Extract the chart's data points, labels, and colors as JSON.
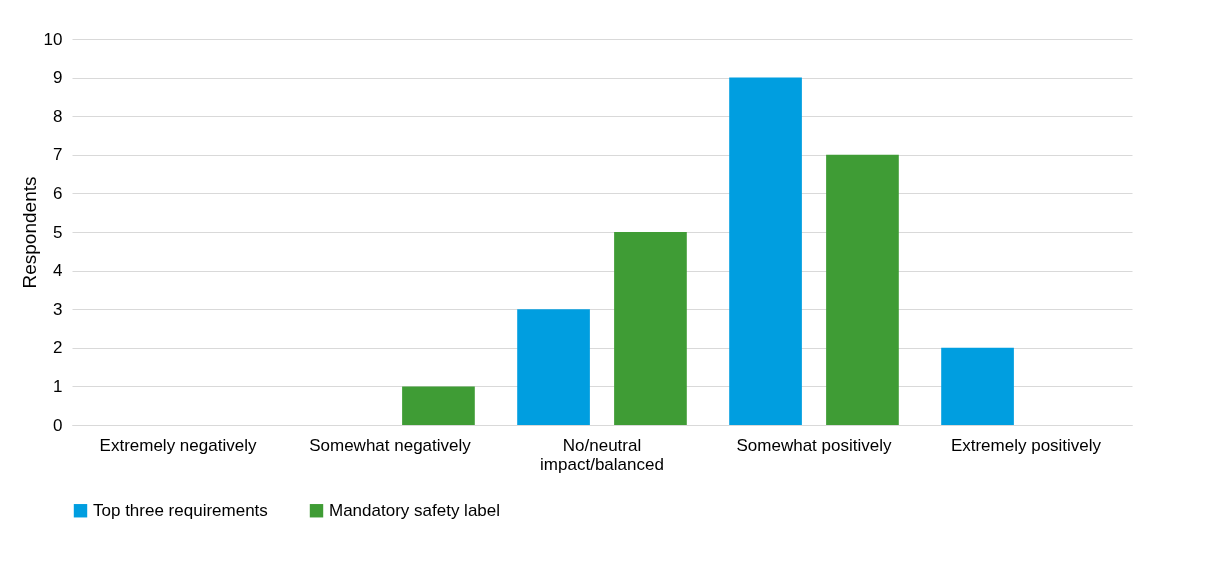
{
  "chart_data": {
    "type": "bar",
    "ylabel": "Respondents",
    "categories": [
      "Extremely negatively",
      "Somewhat negatively",
      "No/neutral impact/balanced",
      "Somewhat positively",
      "Extremely positively"
    ],
    "series": [
      {
        "name": "Top three requirements",
        "color": "#009ee0",
        "values": [
          0,
          0,
          3,
          9,
          2
        ]
      },
      {
        "name": "Mandatory safety label",
        "color": "#3f9c35",
        "values": [
          0,
          1,
          5,
          7,
          0
        ]
      }
    ],
    "ylim": [
      0,
      10
    ],
    "yticks": [
      0,
      1,
      2,
      3,
      4,
      5,
      6,
      7,
      8,
      9,
      10
    ],
    "grid": "y",
    "legend": "bottom"
  }
}
